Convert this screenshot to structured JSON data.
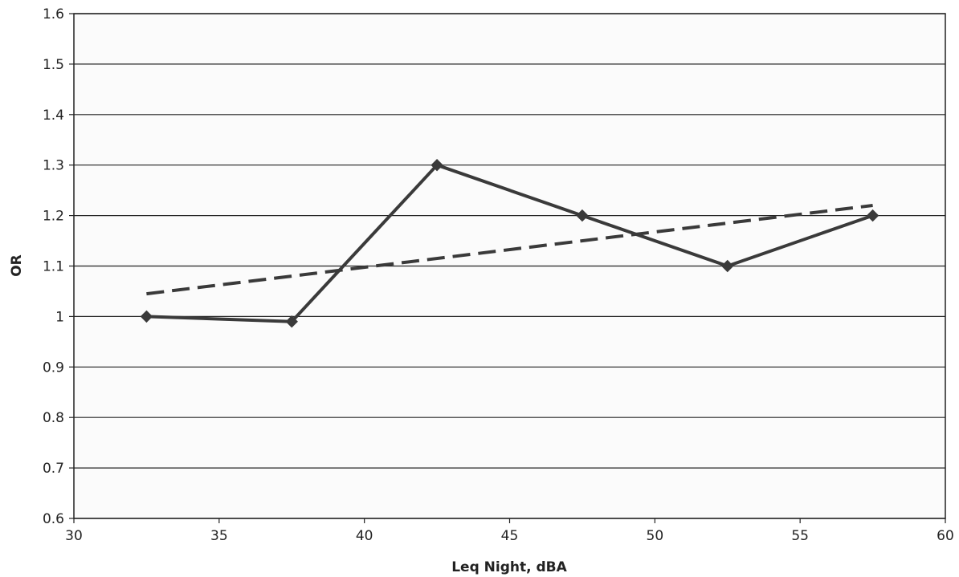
{
  "chart_data": {
    "type": "line",
    "title": "",
    "xlabel": "Leq Night, dBA",
    "ylabel": "OR",
    "xlim": [
      30,
      60
    ],
    "ylim": [
      0.6,
      1.6
    ],
    "x_ticks": [
      30,
      35,
      40,
      45,
      50,
      55,
      60
    ],
    "x_tick_labels": [
      "30",
      "35",
      "40",
      "45",
      "50",
      "55",
      "60"
    ],
    "y_ticks": [
      0.6,
      0.7,
      0.8,
      0.9,
      1.0,
      1.1,
      1.2,
      1.3,
      1.4,
      1.5,
      1.6
    ],
    "y_tick_labels": [
      "0.6",
      "0.7",
      "0.8",
      "0.9",
      "1",
      "1.1",
      "1.2",
      "1.3",
      "1.4",
      "1.5",
      "1.6"
    ],
    "grid": "horizontal",
    "legend": "none",
    "series": [
      {
        "style": "solid",
        "marker": "diamond",
        "color": "#3a3a3a",
        "x": [
          32.5,
          37.5,
          42.5,
          47.5,
          52.5,
          57.5
        ],
        "y": [
          1.0,
          0.99,
          1.3,
          1.2,
          1.1,
          1.2
        ]
      },
      {
        "style": "dashed",
        "marker": "none",
        "color": "#3a3a3a",
        "x": [
          32.5,
          57.5
        ],
        "y": [
          1.045,
          1.22
        ]
      }
    ]
  }
}
